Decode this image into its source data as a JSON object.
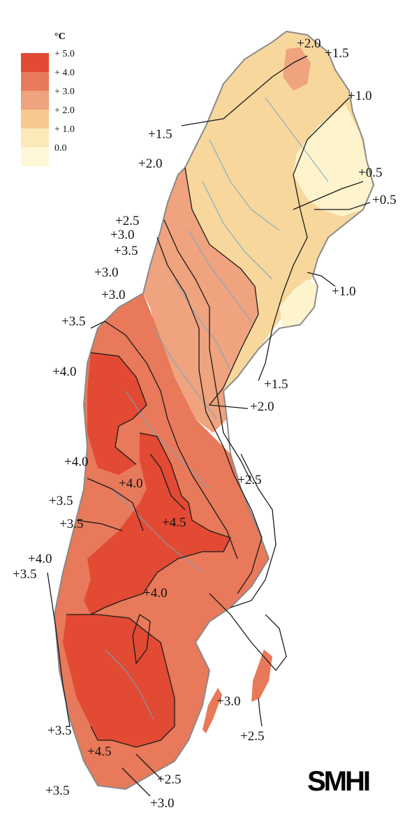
{
  "legend": {
    "unit": "°C",
    "items": [
      {
        "label": "+ 5.0",
        "color": "#e24a33"
      },
      {
        "label": "+ 4.0",
        "color": "#e8795a"
      },
      {
        "label": "+ 3.0",
        "color": "#efa37e"
      },
      {
        "label": "+ 2.0",
        "color": "#f6c98f"
      },
      {
        "label": "+ 1.0",
        "color": "#fbe9b9"
      },
      {
        "label": "0.0",
        "color": "#fff8d6"
      }
    ]
  },
  "isolines": [
    "+2.0",
    "+1.5",
    "+1.0",
    "+1.5",
    "+2.0",
    "+0.5",
    "+0.5",
    "+2.5",
    "+3.0",
    "+3.5",
    "+3.0",
    "+3.0",
    "+1.0",
    "+3.5",
    "+4.0",
    "+1.5",
    "+2.0",
    "+4.0",
    "+4.0",
    "+2.5",
    "+3.5",
    "+4.5",
    "+3.5",
    "+4.0",
    "+3.5",
    "+4.0",
    "+3.0",
    "+3.5",
    "+2.5",
    "+4.5",
    "+2.5",
    "+3.5",
    "+3.0"
  ],
  "logo": "SMHI",
  "colors": {
    "coast": "#8a8a8a",
    "river": "#6fa9c9",
    "contour": "#1a1a1a"
  }
}
